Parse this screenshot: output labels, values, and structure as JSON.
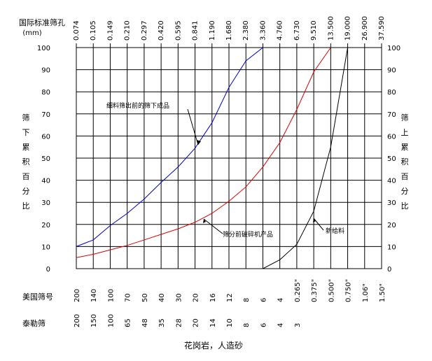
{
  "chart_data": {
    "type": "line",
    "title": "花岗岩，人造砂",
    "top_axis_label_lines": [
      "国际标准筛孔",
      "(mm)"
    ],
    "top_axis_ticks": [
      "0.074",
      "0.105",
      "0.149",
      "0.210",
      "0.297",
      "0.420",
      "0.595",
      "0.841",
      "1.190",
      "1.680",
      "2.380",
      "3.360",
      "4.760",
      "6.730",
      "9.510",
      "13.500",
      "19.000",
      "26.900",
      "37.590"
    ],
    "us_sieve_label": "美国筛号",
    "us_sieve_ticks": [
      "200",
      "140",
      "100",
      "70",
      "50",
      "40",
      "30",
      "20",
      "16",
      "12",
      "8",
      "6",
      "4",
      "0.265\"",
      "0.375\"",
      "0.500\"",
      "0.750\"",
      "1.06\"",
      "1.50\""
    ],
    "tyler_sieve_label": "泰勒筛",
    "tyler_sieve_ticks": [
      "200",
      "150",
      "100",
      "65",
      "48",
      "35",
      "28",
      "20",
      "14",
      "10",
      "8",
      "6",
      "4",
      "3"
    ],
    "ylabel_left": [
      "筛",
      "下",
      "累",
      "积",
      "百",
      "分",
      "比"
    ],
    "ylabel_right": [
      "筛",
      "上",
      "累",
      "积",
      "百",
      "分",
      "比"
    ],
    "yticks_left": [
      "100",
      "90",
      "80",
      "70",
      "60",
      "50",
      "40",
      "30",
      "20",
      "10",
      "0"
    ],
    "yticks_right": [
      "0",
      "10",
      "20",
      "30",
      "40",
      "50",
      "60",
      "70",
      "80",
      "90",
      "100"
    ],
    "ylim": [
      0,
      100
    ],
    "grid": true,
    "series": [
      {
        "name": "细料筛出前的筛下成品",
        "color": "#0000cc",
        "x": [
          "0.074",
          "0.105",
          "0.149",
          "0.210",
          "0.297",
          "0.420",
          "0.595",
          "0.841",
          "1.190",
          "1.680",
          "2.380",
          "3.360"
        ],
        "values": [
          10,
          13,
          19.5,
          25,
          31.5,
          39,
          46,
          54.5,
          66,
          82,
          94,
          100
        ]
      },
      {
        "name": "筛分前破碎机产品",
        "color": "#dd0000",
        "x": [
          "0.074",
          "0.105",
          "0.149",
          "0.210",
          "0.297",
          "0.420",
          "0.595",
          "0.841",
          "1.190",
          "1.680",
          "2.380",
          "3.360",
          "4.760",
          "6.730",
          "9.510",
          "13.500"
        ],
        "values": [
          5,
          6.5,
          8.5,
          10.5,
          13,
          15.5,
          18,
          21,
          25,
          30.5,
          37,
          46,
          57,
          72,
          89,
          100
        ]
      },
      {
        "name": "新给料",
        "color": "#000000",
        "x": [
          "3.360",
          "4.760",
          "6.730",
          "9.510",
          "13.500",
          "19.000"
        ],
        "values": [
          0,
          4,
          11,
          26,
          55,
          100
        ]
      }
    ]
  }
}
